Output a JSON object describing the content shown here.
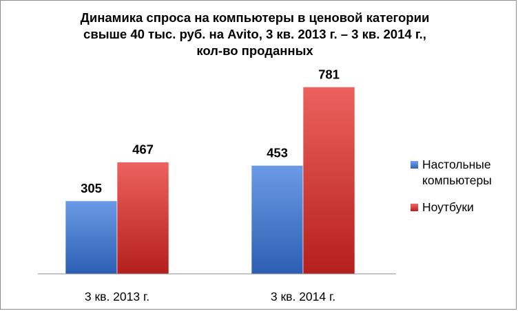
{
  "chart_data": {
    "type": "bar",
    "title_lines": [
      "Динамика спроса на компьютеры в ценовой категории",
      "свыше 40 тыс. руб. на Avito, 3 кв. 2013 г. – 3 кв. 2014 г.,",
      "кол-во проданных"
    ],
    "categories": [
      "3 кв. 2013 г.",
      "3 кв. 2014 г."
    ],
    "series": [
      {
        "name": "Настольные компьютеры",
        "legend_lines": [
          "Настольные",
          "компьютеры"
        ],
        "values": [
          305,
          453
        ],
        "color": "#4a7fd4"
      },
      {
        "name": "Ноутбуки",
        "legend_lines": [
          "Ноутбуки"
        ],
        "values": [
          467,
          781
        ],
        "color": "#d8403d"
      }
    ],
    "ylim": [
      0,
      900
    ],
    "grid": false,
    "legend_position": "right",
    "data_labels": true
  }
}
